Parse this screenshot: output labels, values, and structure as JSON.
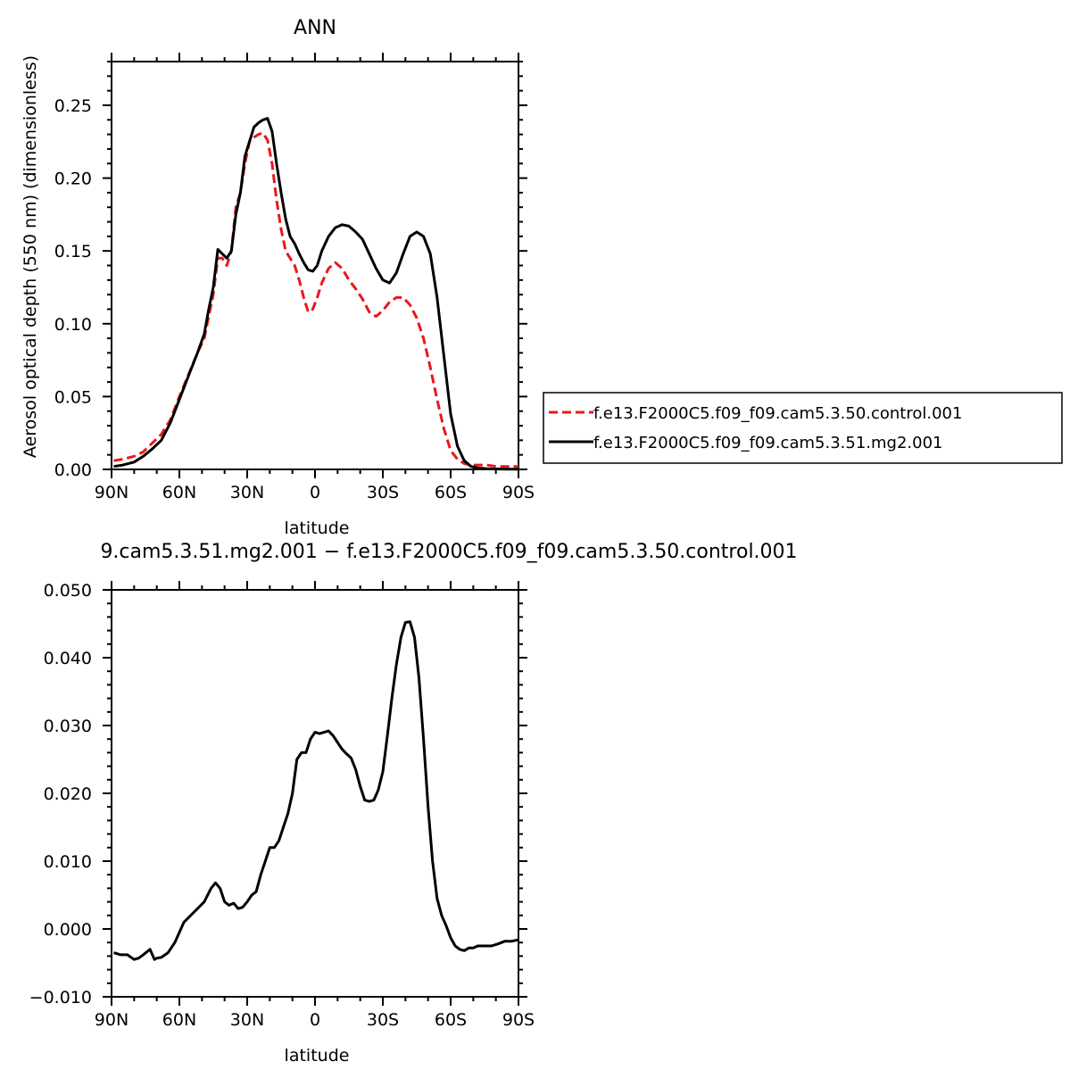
{
  "chart_data": [
    {
      "type": "line",
      "title": "ANN",
      "xlabel": "latitude",
      "ylabel": "Aerosol optical depth (550 nm) (dimensionless)",
      "xlim": [
        90,
        -90
      ],
      "ylim": [
        0,
        0.28
      ],
      "xticks": [
        {
          "value": 90,
          "label": "90N"
        },
        {
          "value": 60,
          "label": "60N"
        },
        {
          "value": 30,
          "label": "30N"
        },
        {
          "value": 0,
          "label": "0"
        },
        {
          "value": -30,
          "label": "30S"
        },
        {
          "value": -60,
          "label": "60S"
        },
        {
          "value": -90,
          "label": "90S"
        }
      ],
      "yticks": [
        {
          "value": 0.0,
          "label": "0.00"
        },
        {
          "value": 0.05,
          "label": "0.05"
        },
        {
          "value": 0.1,
          "label": "0.10"
        },
        {
          "value": 0.15,
          "label": "0.15"
        },
        {
          "value": 0.2,
          "label": "0.20"
        },
        {
          "value": 0.25,
          "label": "0.25"
        }
      ],
      "legend_position": "right",
      "series": [
        {
          "name": "f.e13.F2000C5.f09_f09.cam5.3.50.control.001",
          "color": "#e8181c",
          "dash": "dashed",
          "x": [
            89,
            85,
            80,
            76,
            72,
            68,
            64,
            60,
            56,
            52,
            49,
            47,
            45,
            43,
            41,
            39,
            37,
            35,
            33,
            31,
            29,
            27,
            25,
            23,
            21,
            19,
            17,
            15,
            13,
            11,
            9,
            7,
            5,
            3,
            1,
            -1,
            -3,
            -6,
            -9,
            -12,
            -15,
            -18,
            -21,
            -24,
            -27,
            -30,
            -33,
            -36,
            -39,
            -42,
            -45,
            -48,
            -51,
            -54,
            -57,
            -60,
            -63,
            -66,
            -69,
            -72,
            -76,
            -80,
            -85,
            -90
          ],
          "y": [
            0.006,
            0.007,
            0.009,
            0.012,
            0.018,
            0.024,
            0.034,
            0.05,
            0.065,
            0.08,
            0.09,
            0.105,
            0.12,
            0.145,
            0.145,
            0.14,
            0.15,
            0.18,
            0.19,
            0.21,
            0.225,
            0.228,
            0.23,
            0.231,
            0.226,
            0.21,
            0.185,
            0.165,
            0.15,
            0.145,
            0.14,
            0.13,
            0.118,
            0.108,
            0.11,
            0.118,
            0.128,
            0.138,
            0.142,
            0.138,
            0.13,
            0.124,
            0.117,
            0.108,
            0.105,
            0.109,
            0.115,
            0.118,
            0.118,
            0.113,
            0.104,
            0.09,
            0.07,
            0.048,
            0.028,
            0.013,
            0.007,
            0.004,
            0.003,
            0.003,
            0.003,
            0.002,
            0.002,
            0.002
          ]
        },
        {
          "name": "f.e13.F2000C5.f09_f09.cam5.3.51.mg2.001",
          "color": "#000000",
          "dash": "solid",
          "x": [
            89,
            85,
            80,
            76,
            72,
            68,
            64,
            60,
            56,
            52,
            49,
            47,
            45,
            43,
            41,
            39,
            37,
            35,
            33,
            31,
            29,
            27,
            25,
            23,
            21,
            19,
            17,
            15,
            13,
            11,
            9,
            7,
            5,
            3,
            1,
            -1,
            -3,
            -6,
            -9,
            -12,
            -15,
            -18,
            -21,
            -24,
            -27,
            -30,
            -33,
            -36,
            -39,
            -42,
            -45,
            -48,
            -51,
            -54,
            -57,
            -60,
            -63,
            -66,
            -69,
            -72,
            -76,
            -80,
            -85,
            -90
          ],
          "y": [
            0.002,
            0.003,
            0.005,
            0.009,
            0.014,
            0.02,
            0.032,
            0.048,
            0.064,
            0.08,
            0.093,
            0.11,
            0.125,
            0.151,
            0.148,
            0.145,
            0.15,
            0.175,
            0.19,
            0.215,
            0.225,
            0.235,
            0.238,
            0.24,
            0.241,
            0.232,
            0.21,
            0.19,
            0.172,
            0.16,
            0.155,
            0.148,
            0.142,
            0.137,
            0.136,
            0.14,
            0.15,
            0.16,
            0.166,
            0.168,
            0.167,
            0.163,
            0.158,
            0.148,
            0.138,
            0.13,
            0.128,
            0.135,
            0.148,
            0.16,
            0.163,
            0.16,
            0.148,
            0.118,
            0.078,
            0.038,
            0.016,
            0.006,
            0.002,
            0.001,
            0.0005,
            0.0003,
            0.0002,
            0.0002
          ]
        }
      ]
    },
    {
      "type": "line",
      "title": "9.cam5.3.51.mg2.001 − f.e13.F2000C5.f09_f09.cam5.3.50.control.001",
      "xlabel": "latitude",
      "ylabel": "",
      "xlim": [
        90,
        -90
      ],
      "ylim": [
        -0.01,
        0.05
      ],
      "xticks": [
        {
          "value": 90,
          "label": "90N"
        },
        {
          "value": 60,
          "label": "60N"
        },
        {
          "value": 30,
          "label": "30N"
        },
        {
          "value": 0,
          "label": "0"
        },
        {
          "value": -30,
          "label": "30S"
        },
        {
          "value": -60,
          "label": "60S"
        },
        {
          "value": -90,
          "label": "90S"
        }
      ],
      "yticks": [
        {
          "value": -0.01,
          "label": "−0.010"
        },
        {
          "value": 0.0,
          "label": "0.000"
        },
        {
          "value": 0.01,
          "label": "0.010"
        },
        {
          "value": 0.02,
          "label": "0.020"
        },
        {
          "value": 0.03,
          "label": "0.030"
        },
        {
          "value": 0.04,
          "label": "0.040"
        },
        {
          "value": 0.05,
          "label": "0.050"
        }
      ],
      "series": [
        {
          "color": "#000000",
          "dash": "solid",
          "x": [
            89,
            86,
            83,
            80,
            78,
            76,
            73,
            71,
            70,
            68,
            65,
            62,
            58,
            55,
            52,
            49,
            46,
            44,
            42,
            40,
            38,
            36,
            34,
            32,
            30,
            28,
            26,
            24,
            22,
            20,
            18,
            16,
            14,
            12,
            10,
            8,
            6,
            4,
            2,
            0,
            -2,
            -4,
            -6,
            -8,
            -10,
            -12,
            -14,
            -16,
            -18,
            -20,
            -22,
            -24,
            -26,
            -28,
            -30,
            -32,
            -34,
            -36,
            -38,
            -40,
            -42,
            -44,
            -46,
            -48,
            -50,
            -52,
            -54,
            -56,
            -58,
            -60,
            -62,
            -64,
            -66,
            -68,
            -70,
            -72,
            -75,
            -78,
            -81,
            -84,
            -87,
            -90
          ],
          "y": [
            -0.0035,
            -0.0038,
            -0.0038,
            -0.0045,
            -0.0043,
            -0.0038,
            -0.003,
            -0.0045,
            -0.0043,
            -0.0042,
            -0.0035,
            -0.002,
            0.001,
            0.002,
            0.003,
            0.004,
            0.006,
            0.0068,
            0.006,
            0.004,
            0.0035,
            0.0038,
            0.003,
            0.0032,
            0.004,
            0.005,
            0.0055,
            0.008,
            0.01,
            0.012,
            0.012,
            0.013,
            0.015,
            0.017,
            0.02,
            0.025,
            0.026,
            0.026,
            0.028,
            0.029,
            0.0288,
            0.029,
            0.0292,
            0.0285,
            0.0275,
            0.0265,
            0.0258,
            0.0252,
            0.0235,
            0.021,
            0.019,
            0.0188,
            0.019,
            0.0205,
            0.0232,
            0.0285,
            0.034,
            0.039,
            0.043,
            0.0452,
            0.0453,
            0.043,
            0.037,
            0.028,
            0.018,
            0.01,
            0.0045,
            0.002,
            0.0005,
            -0.0013,
            -0.0025,
            -0.003,
            -0.0032,
            -0.0028,
            -0.0028,
            -0.0025,
            -0.0025,
            -0.0025,
            -0.0022,
            -0.0018,
            -0.0018,
            -0.0016
          ]
        }
      ]
    }
  ]
}
